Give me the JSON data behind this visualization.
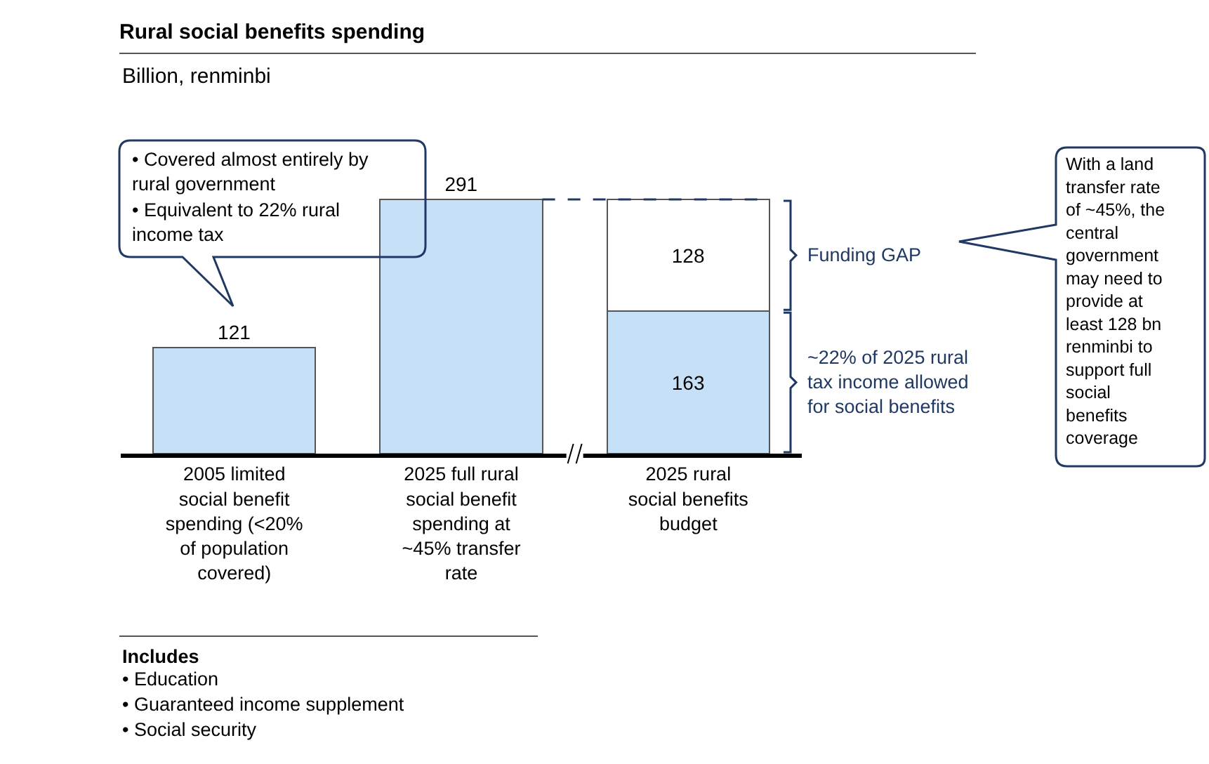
{
  "chart_data": {
    "type": "bar",
    "title": "Rural social benefits spending",
    "subtitle": "Billion, renminbi",
    "categories": [
      "2005 limited social benefit spending (<20% of population covered)",
      "2025 full rural social benefit spending at ~45% transfer rate",
      "2025 rural social benefits budget"
    ],
    "stacked": true,
    "series": [
      {
        "color": "#c6e0f8",
        "values": [
          121,
          291,
          163
        ]
      },
      {
        "color": "#ffffff",
        "values": [
          null,
          null,
          128
        ]
      }
    ],
    "data_labels": true,
    "annotations": [
      "• Covered almost entirely by rural government",
      "• Equivalent to 22% rural income tax",
      "Funding GAP",
      "~22% of 2025 rural tax income allowed for social benefits",
      "With a land transfer rate of ~45%, the central government may need to provide at least 128 bn renminbi to support full social benefits coverage",
      "Includes",
      "• Education",
      "• Guaranteed income supplement",
      "• Social security"
    ]
  }
}
